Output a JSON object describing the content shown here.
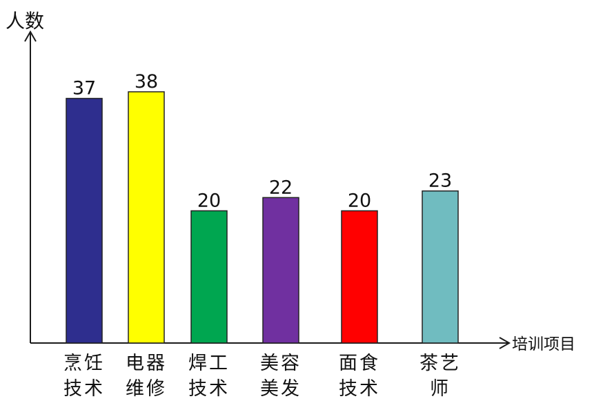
{
  "chart_data": {
    "type": "bar",
    "ylabel": "人数",
    "xlabel": "培训项目",
    "categories": [
      [
        "烹饪",
        "技术"
      ],
      [
        "电器",
        "维修"
      ],
      [
        "焊工",
        "技术"
      ],
      [
        "美容",
        "美发"
      ],
      [
        "面食",
        "技术"
      ],
      [
        "茶艺",
        "师"
      ]
    ],
    "values": [
      37,
      38,
      20,
      22,
      20,
      23
    ],
    "colors": [
      "#2e2e8e",
      "#ffff00",
      "#00a650",
      "#7030a0",
      "#ff0000",
      "#70bcc0"
    ],
    "ylim": [
      0,
      38
    ],
    "grid": false,
    "legend": "none"
  }
}
